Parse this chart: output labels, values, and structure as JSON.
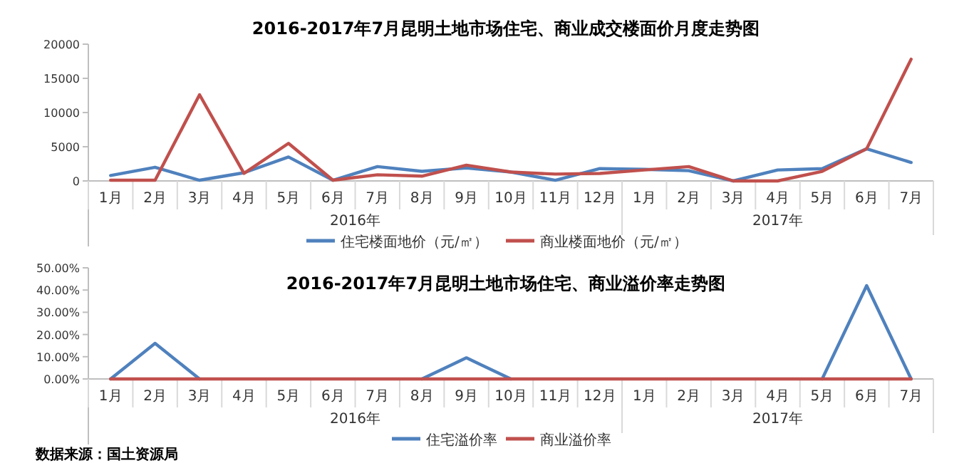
{
  "chart_data": [
    {
      "type": "line",
      "title": "2016-2017年7月昆明土地市场住宅、商业成交楼面价月度走势图",
      "categories": [
        "1月",
        "2月",
        "3月",
        "4月",
        "5月",
        "6月",
        "7月",
        "8月",
        "9月",
        "10月",
        "11月",
        "12月",
        "1月",
        "2月",
        "3月",
        "4月",
        "5月",
        "6月",
        "7月"
      ],
      "series": [
        {
          "name": "住宅楼面地价（元/㎡）",
          "color": "#4f81bd",
          "values": [
            800,
            2000,
            100,
            1200,
            3500,
            100,
            2100,
            1400,
            1900,
            1300,
            100,
            1800,
            1700,
            1500,
            0,
            1600,
            1800,
            4700,
            2700
          ]
        },
        {
          "name": "商业楼面地价（元/㎡）",
          "color": "#c0504d",
          "values": [
            100,
            100,
            12600,
            1100,
            5500,
            100,
            900,
            700,
            2300,
            1300,
            1000,
            1100,
            1600,
            2100,
            0,
            0,
            1400,
            4700,
            17800
          ]
        }
      ],
      "ylim": [
        0,
        20000
      ],
      "yticks": [
        0,
        5000,
        10000,
        15000,
        20000
      ],
      "legend": "bottom",
      "grid": false,
      "annotations": [
        "2016年",
        "2017年"
      ]
    },
    {
      "type": "line",
      "title": "2016-2017年7月昆明土地市场住宅、商业溢价率走势图",
      "categories": [
        "1月",
        "2月",
        "3月",
        "4月",
        "5月",
        "6月",
        "7月",
        "8月",
        "9月",
        "10月",
        "11月",
        "12月",
        "1月",
        "2月",
        "3月",
        "4月",
        "5月",
        "6月",
        "7月"
      ],
      "series": [
        {
          "name": "住宅溢价率",
          "color": "#4f81bd",
          "values": [
            0,
            16,
            0,
            null,
            null,
            null,
            null,
            0,
            9.5,
            0,
            null,
            null,
            null,
            null,
            null,
            null,
            0,
            42,
            0
          ]
        },
        {
          "name": "商业溢价率",
          "color": "#c0504d",
          "values": [
            0,
            0,
            0,
            0,
            0,
            0,
            0,
            0,
            0,
            0,
            0,
            0,
            0,
            0,
            0,
            0,
            0,
            0,
            0
          ]
        }
      ],
      "ylim": [
        0,
        50
      ],
      "yticks": [
        {
          "value": 0,
          "label": "0.00%"
        },
        {
          "value": 10,
          "label": "10.00%"
        },
        {
          "value": 20,
          "label": "20.00%"
        },
        {
          "value": 30,
          "label": "30.00%"
        },
        {
          "value": 40,
          "label": "40.00%"
        },
        {
          "value": 50,
          "label": "50.00%"
        }
      ],
      "legend": "bottom",
      "grid": false,
      "annotations": [
        "2016年",
        "2017年",
        "数据来源：国土资源局"
      ]
    }
  ]
}
